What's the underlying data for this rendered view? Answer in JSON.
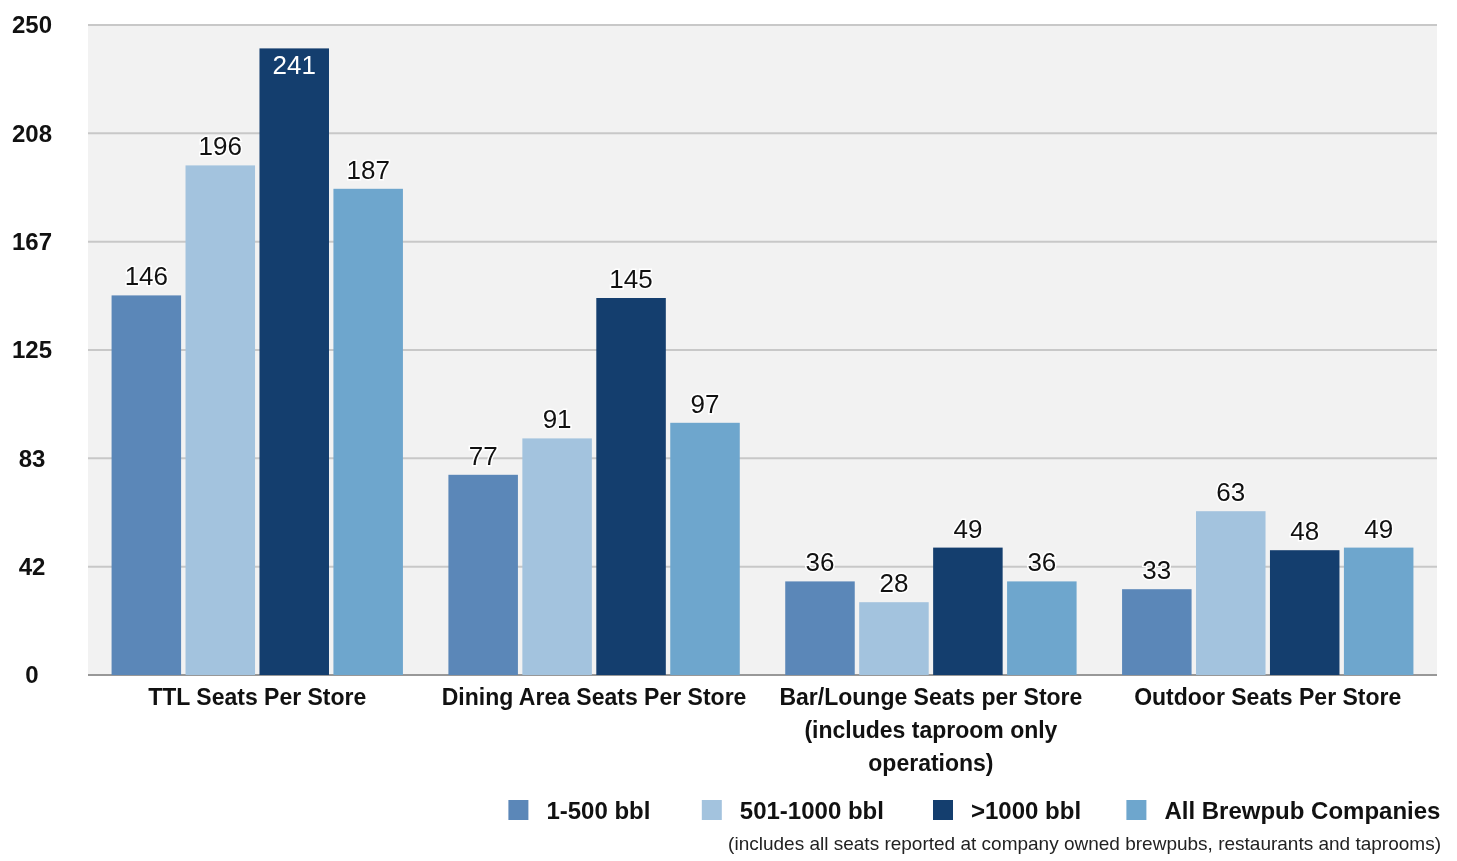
{
  "chart_data": {
    "type": "bar",
    "categories": [
      "TTL Seats Per Store",
      "Dining Area Seats Per Store",
      "Bar/Lounge Seats per Store (includes taproom only operations)",
      "Outdoor Seats Per Store"
    ],
    "series": [
      {
        "name": "1-500 bbl",
        "color": "#5b87b8",
        "values": [
          146,
          77,
          36,
          33
        ]
      },
      {
        "name": "501-1000 bbl",
        "color": "#a3c3de",
        "values": [
          196,
          91,
          28,
          63
        ]
      },
      {
        "name": ">1000 bbl",
        "color": "#143e6e",
        "values": [
          241,
          145,
          49,
          48
        ]
      },
      {
        "name": "All Brewpub Companies",
        "color": "#6ea6cd",
        "values": [
          187,
          97,
          36,
          49
        ]
      }
    ],
    "ylim": [
      0,
      250
    ],
    "yticks": [
      0,
      {
        "value": 41.67,
        "label": "42"
      },
      {
        "value": 83.33,
        "label": "83"
      },
      125,
      {
        "value": 166.67,
        "label": "167"
      },
      {
        "value": 208.33,
        "label": "208"
      },
      250
    ],
    "grid": "y",
    "data_labels": true,
    "legend": "bottom right",
    "annotations": [
      "(includes all seats reported at company owned brewpubs, restaurants and taprooms)"
    ]
  }
}
